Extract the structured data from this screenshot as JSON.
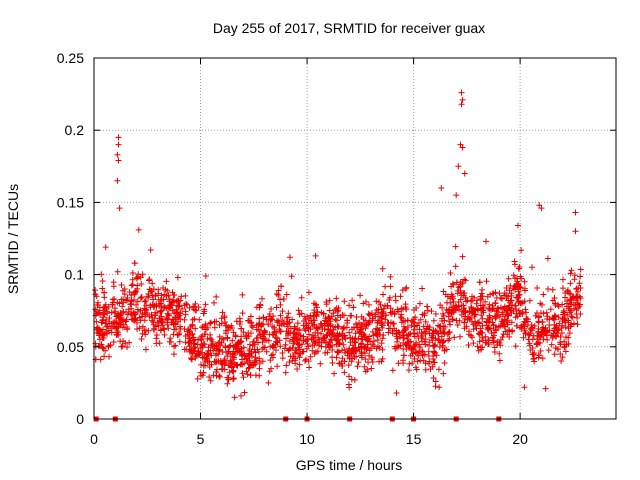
{
  "chart_data": {
    "type": "scatter",
    "title": "Day 255 of 2017, SRMTID for receiver guax",
    "xlabel": "GPS time / hours",
    "ylabel": "SRMTID / TECUs",
    "xlim": [
      0,
      24.5
    ],
    "ylim": [
      0,
      0.25
    ],
    "x_ticks": [
      0,
      5,
      10,
      15,
      20
    ],
    "x_tick_labels": [
      "0",
      "5",
      "10",
      "15",
      "20"
    ],
    "y_ticks": [
      0,
      0.05,
      0.1,
      0.15,
      0.2,
      0.25
    ],
    "y_tick_labels": [
      "0",
      "0.05",
      "0.1",
      "0.15",
      "0.2",
      "0.25"
    ],
    "grid": true,
    "color": "#ee0000",
    "marker": "plus",
    "series": [
      {
        "name": "SRMTID",
        "profile_x": [
          0.1,
          0.8,
          1.0,
          1.5,
          2.0,
          3.0,
          4.0,
          5.0,
          6.0,
          6.8,
          7.5,
          8.5,
          9.5,
          10.0,
          11.0,
          12.0,
          13.0,
          13.7,
          14.5,
          15.5,
          16.0,
          16.5,
          17.0,
          17.5,
          18.0,
          19.0,
          20.0,
          20.5,
          21.0,
          21.5,
          22.0,
          22.8
        ],
        "profile_y": [
          0.065,
          0.068,
          0.07,
          0.072,
          0.08,
          0.075,
          0.07,
          0.052,
          0.048,
          0.045,
          0.05,
          0.062,
          0.055,
          0.06,
          0.062,
          0.05,
          0.058,
          0.075,
          0.06,
          0.055,
          0.05,
          0.065,
          0.085,
          0.075,
          0.07,
          0.065,
          0.085,
          0.06,
          0.06,
          0.065,
          0.065,
          0.085
        ],
        "outliers": [
          [
            0.55,
            0.119
          ],
          [
            1.15,
            0.195
          ],
          [
            1.15,
            0.19
          ],
          [
            1.1,
            0.183
          ],
          [
            1.15,
            0.179
          ],
          [
            1.1,
            0.165
          ],
          [
            1.2,
            0.146
          ],
          [
            2.1,
            0.131
          ],
          [
            9.2,
            0.112
          ],
          [
            10.4,
            0.113
          ],
          [
            16.3,
            0.16
          ],
          [
            17.25,
            0.226
          ],
          [
            17.3,
            0.221
          ],
          [
            17.25,
            0.218
          ],
          [
            17.2,
            0.19
          ],
          [
            17.3,
            0.188
          ],
          [
            17.1,
            0.175
          ],
          [
            17.4,
            0.17
          ],
          [
            17.0,
            0.155
          ],
          [
            18.4,
            0.123
          ],
          [
            19.9,
            0.134
          ],
          [
            20.9,
            0.148
          ],
          [
            21.0,
            0.146
          ],
          [
            22.6,
            0.143
          ],
          [
            22.6,
            0.13
          ],
          [
            14.2,
            0.018
          ],
          [
            6.6,
            0.015
          ],
          [
            6.9,
            0.016
          ],
          [
            16.2,
            0.022
          ],
          [
            20.2,
            0.022
          ],
          [
            21.2,
            0.021
          ]
        ]
      }
    ],
    "axis_markers_x": [
      0.1,
      1.0,
      9.0,
      10.0,
      12.0,
      14.0,
      15.0,
      17.0,
      19.0
    ]
  }
}
